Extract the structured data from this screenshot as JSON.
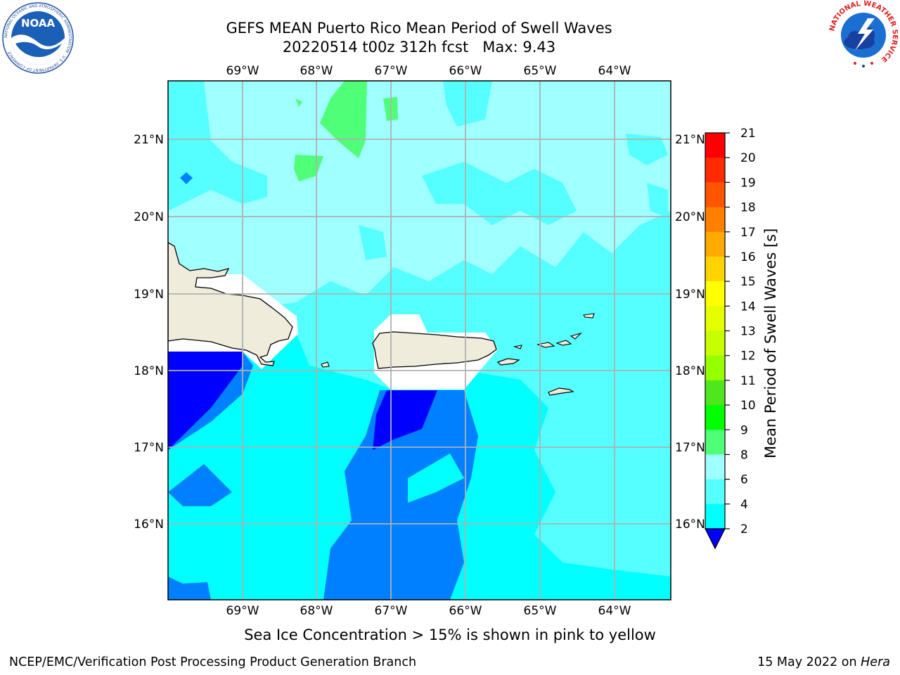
{
  "header": {
    "title_line1": "GEFS MEAN Puerto Rico Mean Period of Swell Waves",
    "title_line2": "20220514 t00z 312h fcst   Max: 9.43"
  },
  "logos": {
    "left": "noora-logo",
    "left_text": "NOAA",
    "left_ring_text": "NATIONAL OCEANIC AND ATMOSPHERIC ADMINISTRATION · U.S. DEPARTMENT OF COMMERCE",
    "right": "nws-logo",
    "right_ring_text": "NATIONAL WEATHER SERVICE"
  },
  "map": {
    "lon_labels": [
      "69°W",
      "68°W",
      "67°W",
      "66°W",
      "65°W",
      "64°W"
    ],
    "lat_labels": [
      "21°N",
      "20°N",
      "19°N",
      "18°N",
      "17°N",
      "16°N"
    ],
    "land_color": "#efecdc",
    "ocean_colors": {
      "2-4": "#0080ff",
      "4-6": "#00ffff",
      "6-8": "#55ffff",
      "8-9": "#a0ffff",
      "9-10": "#50ff78",
      "below-2": "#0000ff"
    }
  },
  "colorbar": {
    "label": "Mean Period of Swell Waves [s]",
    "ticks": [
      "21",
      "20",
      "19",
      "18",
      "17",
      "16",
      "15",
      "14",
      "13",
      "12",
      "11",
      "10",
      "9",
      "8",
      "6",
      "4",
      "2"
    ],
    "colors": [
      "#ff0000",
      "#ff2a00",
      "#ff5500",
      "#ff8000",
      "#ffaa00",
      "#ffd400",
      "#ffff00",
      "#e6ff00",
      "#c8ff00",
      "#96ff00",
      "#50e61e",
      "#00ff00",
      "#50ff78",
      "#a0ffff",
      "#55ffff",
      "#00ffff",
      "#0080ff",
      "#0000ff"
    ]
  },
  "caption": "Sea Ice Concentration > 15% is shown in pink to yellow",
  "footer": {
    "left": "NCEP/EMC/Verification Post Processing Product Generation Branch",
    "date": "15 May 2022 on ",
    "host": "Hera"
  }
}
